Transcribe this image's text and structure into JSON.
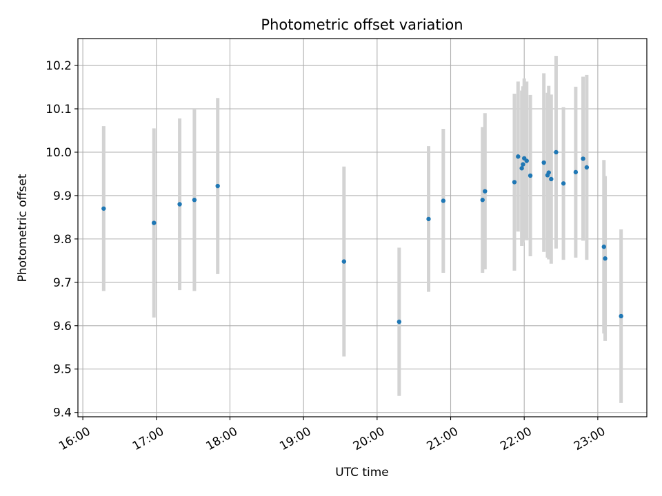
{
  "chart_data": {
    "type": "scatter",
    "title": "Photometric offset variation",
    "xlabel": "UTC time",
    "ylabel": "Photometric offset",
    "xlim": [
      "15:56",
      "23:40"
    ],
    "ylim": [
      9.39,
      10.262
    ],
    "grid": true,
    "x_tick_labels": [
      "16:00",
      "17:00",
      "18:00",
      "19:00",
      "20:00",
      "21:00",
      "22:00",
      "23:00"
    ],
    "y_ticks": [
      9.4,
      9.5,
      9.6,
      9.7,
      9.8,
      9.9,
      10.0,
      10.1,
      10.2
    ],
    "y_tick_labels": [
      "9.4",
      "9.5",
      "9.6",
      "9.7",
      "9.8",
      "9.9",
      "10.0",
      "10.1",
      "10.2"
    ],
    "colors": {
      "points": "#1f77b4",
      "errorbars": "#d3d3d3",
      "grid": "#b0b0b0"
    },
    "series": [
      {
        "points": [
          {
            "x": "16:17",
            "y": 9.87,
            "err": 0.19
          },
          {
            "x": "16:58",
            "y": 9.837,
            "err": 0.218
          },
          {
            "x": "17:19",
            "y": 9.88,
            "err": 0.198
          },
          {
            "x": "17:31",
            "y": 9.89,
            "err": 0.21
          },
          {
            "x": "17:50",
            "y": 9.922,
            "err": 0.203
          },
          {
            "x": "19:33",
            "y": 9.748,
            "err": 0.219
          },
          {
            "x": "20:18",
            "y": 9.609,
            "err": 0.171
          },
          {
            "x": "20:42",
            "y": 9.846,
            "err": 0.168
          },
          {
            "x": "20:54",
            "y": 9.888,
            "err": 0.166
          },
          {
            "x": "21:26",
            "y": 9.89,
            "err": 0.168
          },
          {
            "x": "21:28",
            "y": 9.91,
            "err": 0.18
          },
          {
            "x": "21:52",
            "y": 9.931,
            "err": 0.204
          },
          {
            "x": "21:55",
            "y": 9.99,
            "err": 0.173
          },
          {
            "x": "21:58",
            "y": 9.963,
            "err": 0.179
          },
          {
            "x": "21:59",
            "y": 9.972,
            "err": 0.18
          },
          {
            "x": "22:00",
            "y": 9.986,
            "err": 0.184
          },
          {
            "x": "22:02",
            "y": 9.98,
            "err": 0.183
          },
          {
            "x": "22:05",
            "y": 9.946,
            "err": 0.186
          },
          {
            "x": "22:16",
            "y": 9.976,
            "err": 0.206
          },
          {
            "x": "22:19",
            "y": 9.947,
            "err": 0.19
          },
          {
            "x": "22:20",
            "y": 9.953,
            "err": 0.2
          },
          {
            "x": "22:22",
            "y": 9.938,
            "err": 0.195
          },
          {
            "x": "22:26",
            "y": 10.0,
            "err": 0.222
          },
          {
            "x": "22:32",
            "y": 9.928,
            "err": 0.176
          },
          {
            "x": "22:42",
            "y": 9.954,
            "err": 0.197
          },
          {
            "x": "22:48",
            "y": 9.985,
            "err": 0.189
          },
          {
            "x": "22:51",
            "y": 9.965,
            "err": 0.213
          },
          {
            "x": "23:05",
            "y": 9.782,
            "err": 0.2
          },
          {
            "x": "23:06",
            "y": 9.755,
            "err": 0.19
          },
          {
            "x": "23:19",
            "y": 9.622,
            "err": 0.2
          }
        ]
      }
    ]
  }
}
